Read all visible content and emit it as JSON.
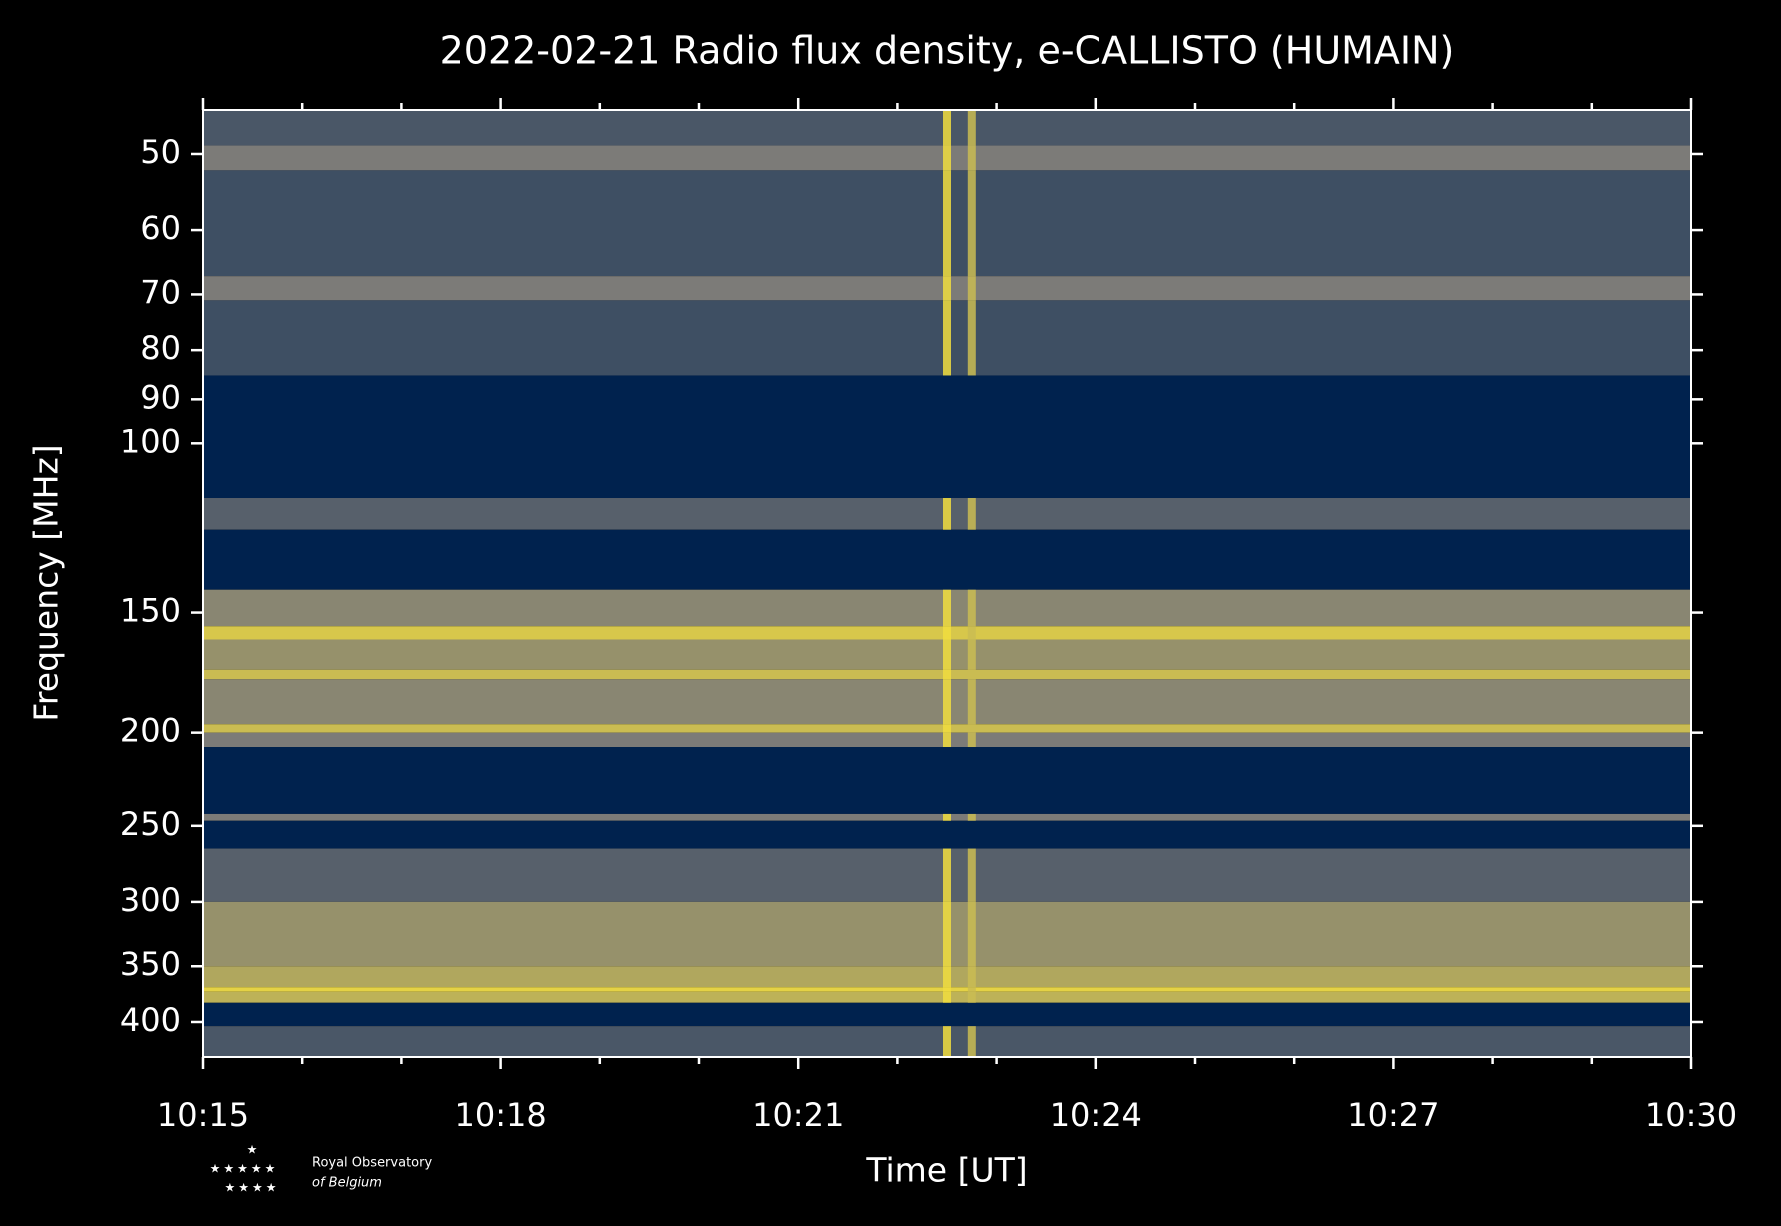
{
  "chart_data": {
    "type": "spectrogram",
    "title": "2022-02-21 Radio flux density, e-CALLISTO (HUMAIN)",
    "xlabel": "Time [UT]",
    "ylabel": "Frequency [MHz]",
    "xlim": [
      615,
      630
    ],
    "xticks": [
      {
        "value": 615,
        "label": "10:15"
      },
      {
        "value": 618,
        "label": "10:18"
      },
      {
        "value": 621,
        "label": "10:21"
      },
      {
        "value": 624,
        "label": "10:24"
      },
      {
        "value": 627,
        "label": "10:27"
      },
      {
        "value": 630,
        "label": "10:30"
      }
    ],
    "xminorticks": [
      616,
      617,
      619,
      620,
      622,
      623,
      625,
      626,
      628,
      629
    ],
    "ylim": [
      45,
      435
    ],
    "log_y": true,
    "y_inverted": true,
    "yticks": [
      50,
      60,
      70,
      80,
      90,
      100,
      150,
      200,
      250,
      300,
      350,
      400
    ],
    "colormap": [
      "#00224e",
      "#7c7b78",
      "#fee838"
    ],
    "rows": [
      {
        "low": 45,
        "high": 49,
        "level": 0.3
      },
      {
        "low": 49,
        "high": 52,
        "level": 0.5
      },
      {
        "low": 52,
        "high": 67,
        "level": 0.25
      },
      {
        "low": 67,
        "high": 71,
        "level": 0.5
      },
      {
        "low": 71,
        "high": 85,
        "level": 0.25
      },
      {
        "low": 85,
        "high": 114,
        "level": 0
      },
      {
        "low": 114,
        "high": 123,
        "level": 0.35
      },
      {
        "low": 123,
        "high": 142,
        "level": 0
      },
      {
        "low": 142,
        "high": 155,
        "level": 0.55
      },
      {
        "low": 155,
        "high": 160,
        "level": 0.85
      },
      {
        "low": 160,
        "high": 172,
        "level": 0.6
      },
      {
        "low": 172,
        "high": 176,
        "level": 0.8
      },
      {
        "low": 176,
        "high": 196,
        "level": 0.55
      },
      {
        "low": 196,
        "high": 200,
        "level": 0.8
      },
      {
        "low": 200,
        "high": 207,
        "level": 0.5
      },
      {
        "low": 207,
        "high": 243,
        "level": 0
      },
      {
        "low": 243,
        "high": 247,
        "level": 0.5
      },
      {
        "low": 247,
        "high": 264,
        "level": 0
      },
      {
        "low": 264,
        "high": 300,
        "level": 0.35
      },
      {
        "low": 300,
        "high": 350,
        "level": 0.6
      },
      {
        "low": 350,
        "high": 368,
        "level": 0.7
      },
      {
        "low": 368,
        "high": 372,
        "level": 0.9
      },
      {
        "low": 372,
        "high": 382,
        "level": 0.75
      },
      {
        "low": 382,
        "high": 404,
        "level": 0
      },
      {
        "low": 404,
        "high": 435,
        "level": 0.3
      }
    ],
    "bursts": [
      {
        "time": 622.5,
        "level": 0.95
      },
      {
        "time": 622.75,
        "level": 0.8
      }
    ]
  },
  "logo": {
    "line1": "Royal Observatory",
    "line2": "of Belgium"
  }
}
